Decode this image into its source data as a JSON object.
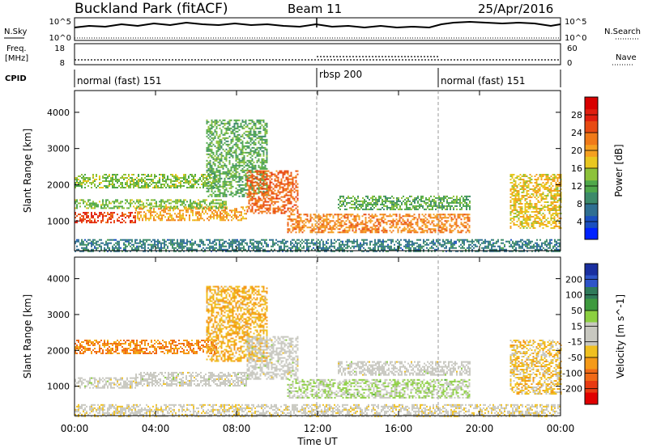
{
  "header": {
    "station": "Buckland Park (fitACF)",
    "beam": "Beam 11",
    "date": "25/Apr/2016"
  },
  "noise_panel": {
    "left_label": "N.Sky",
    "left_ticks": [
      "10^5",
      "10^0"
    ],
    "right_ticks": [
      "10^5",
      "10^0"
    ],
    "right_label": "N.Search"
  },
  "freq_panel": {
    "label_line1": "Freq.",
    "label_line2": "[MHz]",
    "left_ticks": [
      "18",
      "8"
    ],
    "right_ticks": [
      "60",
      "0"
    ],
    "right_label": "Nave"
  },
  "cpid_panel": {
    "label": "CPID",
    "segments": [
      {
        "name": "normal (fast) 151",
        "start_hour": 0,
        "end_hour": 12
      },
      {
        "name": "rbsp 200",
        "start_hour": 12,
        "end_hour": 18
      },
      {
        "name": "normal (fast) 151",
        "start_hour": 18,
        "end_hour": 24
      }
    ]
  },
  "axes": {
    "xlabel": "Time UT",
    "xticks": [
      "00:00",
      "04:00",
      "08:00",
      "12:00",
      "16:00",
      "20:00",
      "00:00"
    ],
    "ylabel": "Slant Range [km]",
    "yticks": [
      "1000",
      "2000",
      "3000",
      "4000"
    ]
  },
  "colorbars": {
    "power": {
      "label": "Power [dB]",
      "ticks": [
        "4",
        "8",
        "12",
        "16",
        "20",
        "24",
        "28"
      ],
      "colors": [
        "#0022ff",
        "#1a4fc0",
        "#2f6f92",
        "#3c8a6a",
        "#4fa84a",
        "#8dc23a",
        "#e9c720",
        "#f5a020",
        "#f07a18",
        "#e84a12",
        "#e01e0e",
        "#d80000"
      ]
    },
    "velocity": {
      "label": "Velocity [m s^-1]",
      "ticks": [
        "200",
        "100",
        "50",
        "15",
        "-15",
        "-50",
        "-100",
        "-200"
      ],
      "colors": [
        "#1a2fa0",
        "#2e55c8",
        "#2f7a5a",
        "#3e9a3e",
        "#8ccf40",
        "#c8c8c0",
        "#c8c8c0",
        "#f0c020",
        "#f59a18",
        "#f06a18",
        "#e83a12",
        "#e00000"
      ]
    }
  },
  "chart_data": [
    {
      "type": "heatmap",
      "title": "Power",
      "xlabel": "Time UT",
      "ylabel": "Slant Range [km]",
      "xlim": [
        0,
        24
      ],
      "ylim": [
        180,
        4600
      ],
      "colorbar_label": "Power [dB]",
      "colorbar_range": [
        0,
        32
      ],
      "echo_regions": [
        {
          "t_start": 0.0,
          "t_end": 3.0,
          "range_start": 950,
          "range_end": 1250,
          "value": 26
        },
        {
          "t_start": 3.0,
          "t_end": 8.5,
          "range_start": 1000,
          "range_end": 1400,
          "value": 20
        },
        {
          "t_start": 0.0,
          "t_end": 7.5,
          "range_start": 1350,
          "range_end": 1600,
          "value": 14
        },
        {
          "t_start": 0.0,
          "t_end": 7.0,
          "range_start": 1900,
          "range_end": 2300,
          "value": 14
        },
        {
          "t_start": 6.5,
          "t_end": 9.5,
          "range_start": 1700,
          "range_end": 3800,
          "value": 12
        },
        {
          "t_start": 8.5,
          "t_end": 11.0,
          "range_start": 1200,
          "range_end": 2400,
          "value": 24
        },
        {
          "t_start": 10.5,
          "t_end": 19.5,
          "range_start": 700,
          "range_end": 1200,
          "value": 22
        },
        {
          "t_start": 13.0,
          "t_end": 19.5,
          "range_start": 1300,
          "range_end": 1700,
          "value": 12
        },
        {
          "t_start": 21.5,
          "t_end": 24.0,
          "range_start": 800,
          "range_end": 2300,
          "value": 18
        },
        {
          "t_start": 0.0,
          "t_end": 24.0,
          "range_start": 180,
          "range_end": 500,
          "value": 8
        }
      ]
    },
    {
      "type": "heatmap",
      "title": "Velocity",
      "xlabel": "Time UT",
      "ylabel": "Slant Range [km]",
      "xlim": [
        0,
        24
      ],
      "ylim": [
        180,
        4600
      ],
      "colorbar_label": "Velocity [m s^-1]",
      "colorbar_range": [
        -250,
        250
      ],
      "echo_regions": [
        {
          "t_start": 0.0,
          "t_end": 3.0,
          "range_start": 950,
          "range_end": 1250,
          "value": 0
        },
        {
          "t_start": 3.0,
          "t_end": 8.5,
          "range_start": 1000,
          "range_end": 1400,
          "value": 0
        },
        {
          "t_start": 0.0,
          "t_end": 7.0,
          "range_start": 1900,
          "range_end": 2300,
          "value": -120
        },
        {
          "t_start": 6.5,
          "t_end": 9.5,
          "range_start": 1700,
          "range_end": 3800,
          "value": -80
        },
        {
          "t_start": 8.5,
          "t_end": 11.0,
          "range_start": 1200,
          "range_end": 2400,
          "value": 0
        },
        {
          "t_start": 10.5,
          "t_end": 19.5,
          "range_start": 700,
          "range_end": 1200,
          "value": 40
        },
        {
          "t_start": 13.0,
          "t_end": 19.5,
          "range_start": 1300,
          "range_end": 1700,
          "value": 0
        },
        {
          "t_start": 21.5,
          "t_end": 24.0,
          "range_start": 800,
          "range_end": 2300,
          "value": -60
        },
        {
          "t_start": 0.0,
          "t_end": 24.0,
          "range_start": 180,
          "range_end": 500,
          "value": -20
        }
      ]
    }
  ]
}
